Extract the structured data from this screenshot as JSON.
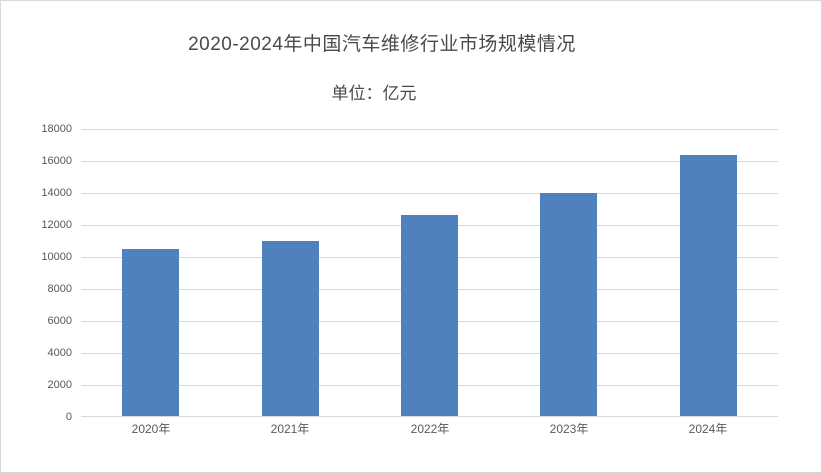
{
  "window": {
    "background_color": "#ffffff",
    "border_color": "#d9d9d9"
  },
  "chart_data": {
    "type": "bar",
    "title": "2020-2024年中国汽车维修行业市场规模情况",
    "subtitle": "单位：亿元",
    "categories": [
      "2020年",
      "2021年",
      "2022年",
      "2023年",
      "2024年"
    ],
    "values": [
      10500,
      11000,
      12600,
      14000,
      16400
    ],
    "ylim": [
      0,
      18000
    ],
    "ytick_step": 2000,
    "yticks": [
      0,
      2000,
      4000,
      6000,
      8000,
      10000,
      12000,
      14000,
      16000,
      18000
    ],
    "xlabel": "",
    "ylabel": "",
    "grid": true,
    "legend_position": "none",
    "bar_color": "#4F81BD",
    "gridline_color": "#D9D9D9",
    "axis_line_color": "#D9D9D9",
    "tick_label_color": "#595959",
    "title_color": "#4A4A4A"
  }
}
